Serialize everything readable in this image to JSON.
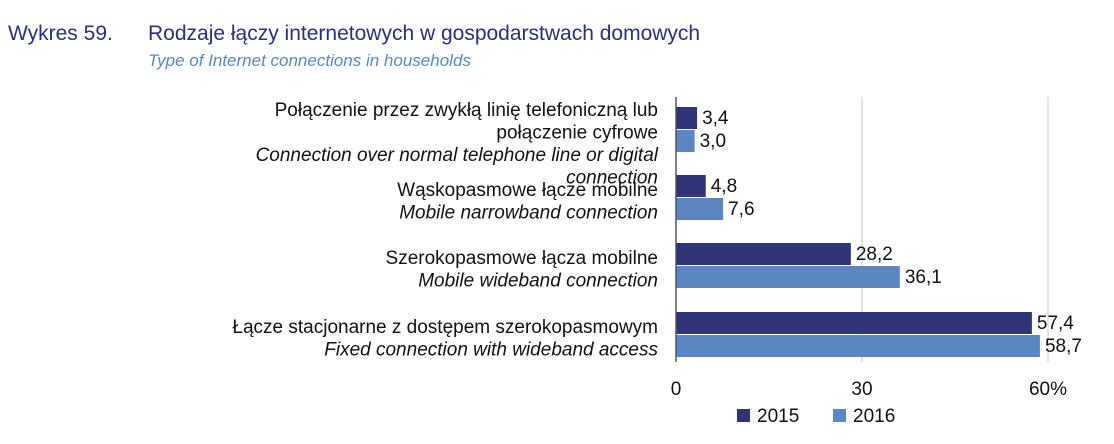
{
  "figure": {
    "number": "Wykres 59.",
    "title": "Rodzaje łączy internetowych w gospodarstwach domowych",
    "subtitle": "Type of Internet connections in households"
  },
  "chart_data": {
    "type": "bar",
    "orientation": "horizontal",
    "categories": [
      {
        "pl": [
          "Połączenie przez zwykłą linię telefoniczną lub",
          "połączenie cyfrowe"
        ],
        "en": [
          "Connection over normal  telephone line or digital",
          "connection"
        ]
      },
      {
        "pl": [
          "Wąskopasmowe łącze mobilne"
        ],
        "en": [
          "Mobile narrowband connection"
        ]
      },
      {
        "pl": [
          "Szerokopasmowe łącza mobilne"
        ],
        "en": [
          "Mobile wideband connection"
        ]
      },
      {
        "pl": [
          "Łącze stacjonarne z dostępem szerokopasmowym"
        ],
        "en": [
          "Fixed connection with wideband access"
        ]
      }
    ],
    "series": [
      {
        "name": "2015",
        "color": "#2e3475",
        "values": [
          3.4,
          4.8,
          28.2,
          57.4
        ],
        "labels": [
          "3,4",
          "4,8",
          "28,2",
          "57,4"
        ]
      },
      {
        "name": "2016",
        "color": "#5b86c2",
        "values": [
          3.0,
          7.6,
          36.1,
          58.7
        ],
        "labels": [
          "3,0",
          "7,6",
          "36,1",
          "58,7"
        ]
      }
    ],
    "xlim": [
      0,
      60
    ],
    "ticks": [
      0,
      30,
      60
    ],
    "tick_labels": [
      "0",
      "30",
      "60%"
    ],
    "gridlines": true,
    "legend_position": "bottom"
  }
}
